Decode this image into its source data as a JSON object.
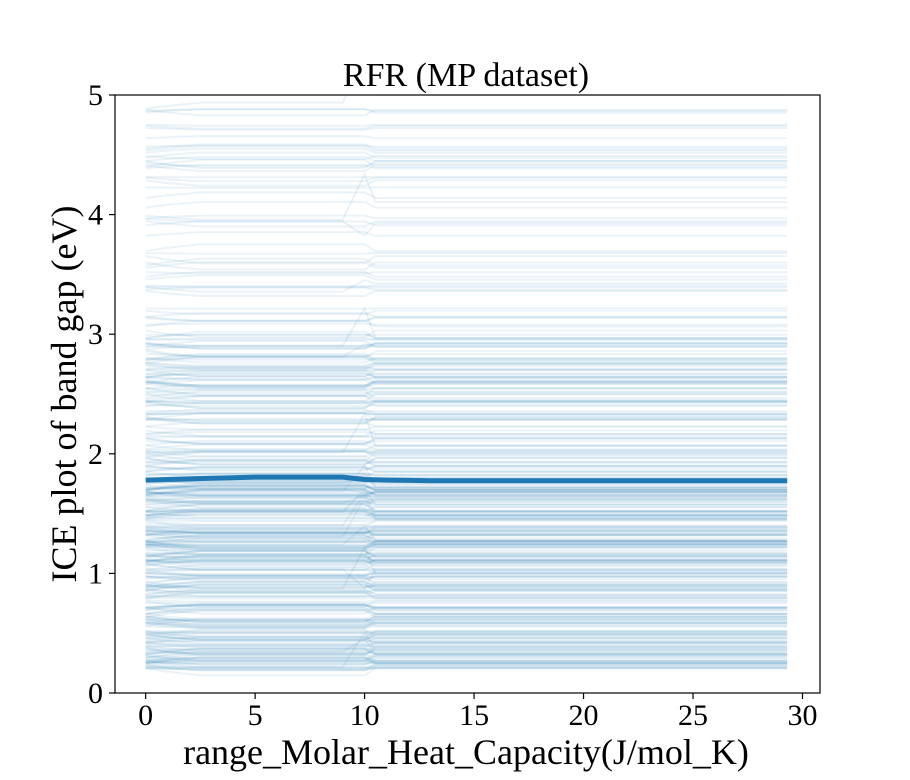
{
  "chart_data": {
    "type": "line",
    "title": "RFR (MP dataset)",
    "xlabel": "range_Molar_Heat_Capacity(J/mol_K)",
    "ylabel": "ICE plot of band gap (eV)",
    "xlim": [
      -1.4,
      30.8
    ],
    "ylim": [
      0,
      5
    ],
    "xticks": [
      0,
      5,
      10,
      15,
      20,
      25,
      30
    ],
    "yticks": [
      0,
      1,
      2,
      3,
      4,
      5
    ],
    "grid": false,
    "colors": {
      "ice": "#1f77b4",
      "pd": "#1f77b4"
    },
    "ice_x_range": [
      0,
      29.3
    ],
    "ice_line_count": 420,
    "series": [
      {
        "x": [
          0,
          1,
          2,
          3,
          4,
          5,
          6,
          7,
          8,
          9,
          10,
          11,
          12,
          13,
          14,
          15,
          16,
          17,
          18,
          19,
          20,
          21,
          22,
          23,
          24,
          25,
          26,
          27,
          28,
          29,
          29.3
        ],
        "values": [
          1.78,
          1.785,
          1.79,
          1.795,
          1.8,
          1.805,
          1.805,
          1.805,
          1.805,
          1.805,
          1.785,
          1.78,
          1.778,
          1.775,
          1.775,
          1.775,
          1.775,
          1.775,
          1.775,
          1.775,
          1.775,
          1.775,
          1.775,
          1.775,
          1.775,
          1.775,
          1.775,
          1.775,
          1.775,
          1.775,
          1.775
        ]
      }
    ]
  }
}
